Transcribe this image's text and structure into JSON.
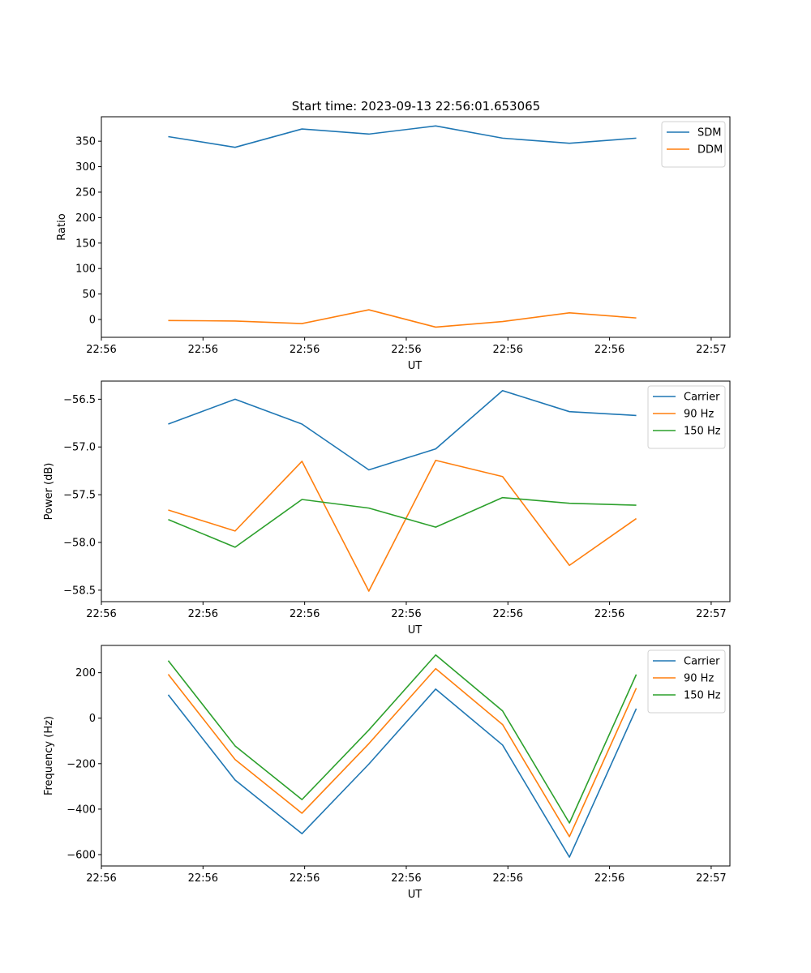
{
  "figure_title": "Start time: 2023-09-13 22:56:01.653065",
  "chart_data": [
    {
      "type": "line",
      "ylabel": "Ratio",
      "xlabel": "UT",
      "xlim": [
        0,
        9.4
      ],
      "ylim": [
        -35,
        398
      ],
      "x": [
        1,
        2,
        3,
        4,
        5,
        6,
        7,
        8
      ],
      "xticks": [
        0,
        1.52,
        3.04,
        4.56,
        6.08,
        7.6,
        9.12
      ],
      "xtick_labels": [
        "22:56",
        "22:56",
        "22:56",
        "22:56",
        "22:56",
        "22:56",
        "22:57"
      ],
      "yticks": [
        0,
        50,
        100,
        150,
        200,
        250,
        300,
        350
      ],
      "ytick_labels": [
        "0",
        "50",
        "100",
        "150",
        "200",
        "250",
        "300",
        "350"
      ],
      "legend_position": "top-right",
      "series": [
        {
          "name": "SDM",
          "color": "#1f77b4",
          "values": [
            359,
            338,
            374,
            364,
            380,
            356,
            346,
            356
          ]
        },
        {
          "name": "DDM",
          "color": "#ff7f0e",
          "values": [
            -2,
            -3,
            -8,
            19,
            -15,
            -4,
            13,
            3
          ]
        }
      ]
    },
    {
      "type": "line",
      "ylabel": "Power (dB)",
      "xlabel": "UT",
      "xlim": [
        0,
        9.4
      ],
      "ylim": [
        -58.62,
        -56.31
      ],
      "x": [
        1,
        2,
        3,
        4,
        5,
        6,
        7,
        8
      ],
      "xticks": [
        0,
        1.52,
        3.04,
        4.56,
        6.08,
        7.6,
        9.12
      ],
      "xtick_labels": [
        "22:56",
        "22:56",
        "22:56",
        "22:56",
        "22:56",
        "22:56",
        "22:57"
      ],
      "yticks": [
        -58.5,
        -58.0,
        -57.5,
        -57.0,
        -56.5
      ],
      "ytick_labels": [
        "−58.5",
        "−58.0",
        "−57.5",
        "−57.0",
        "−56.5"
      ],
      "legend_position": "top-right",
      "series": [
        {
          "name": "Carrier",
          "color": "#1f77b4",
          "values": [
            -56.76,
            -56.5,
            -56.76,
            -57.24,
            -57.02,
            -56.41,
            -56.63,
            -56.67
          ]
        },
        {
          "name": "90 Hz",
          "color": "#ff7f0e",
          "values": [
            -57.66,
            -57.88,
            -57.15,
            -58.51,
            -57.14,
            -57.31,
            -58.24,
            -57.75
          ]
        },
        {
          "name": "150 Hz",
          "color": "#2ca02c",
          "values": [
            -57.76,
            -58.05,
            -57.55,
            -57.64,
            -57.84,
            -57.53,
            -57.59,
            -57.61
          ]
        }
      ]
    },
    {
      "type": "line",
      "ylabel": "Frequency (Hz)",
      "xlabel": "UT",
      "xlim": [
        0,
        9.4
      ],
      "ylim": [
        -650,
        320
      ],
      "x": [
        1,
        2,
        3,
        4,
        5,
        6,
        7,
        8
      ],
      "xticks": [
        0,
        1.52,
        3.04,
        4.56,
        6.08,
        7.6,
        9.12
      ],
      "xtick_labels": [
        "22:56",
        "22:56",
        "22:56",
        "22:56",
        "22:56",
        "22:56",
        "22:57"
      ],
      "yticks": [
        -600,
        -400,
        -200,
        0,
        200
      ],
      "ytick_labels": [
        "−600",
        "−400",
        "−200",
        "0",
        "200"
      ],
      "legend_position": "top-right",
      "series": [
        {
          "name": "Carrier",
          "color": "#1f77b4",
          "values": [
            103,
            -272,
            -508,
            -202,
            128,
            -118,
            -611,
            42
          ]
        },
        {
          "name": "90 Hz",
          "color": "#ff7f0e",
          "values": [
            193,
            -182,
            -418,
            -112,
            218,
            -28,
            -521,
            132
          ]
        },
        {
          "name": "150 Hz",
          "color": "#2ca02c",
          "values": [
            253,
            -122,
            -358,
            -52,
            278,
            32,
            -461,
            192
          ]
        }
      ]
    }
  ]
}
